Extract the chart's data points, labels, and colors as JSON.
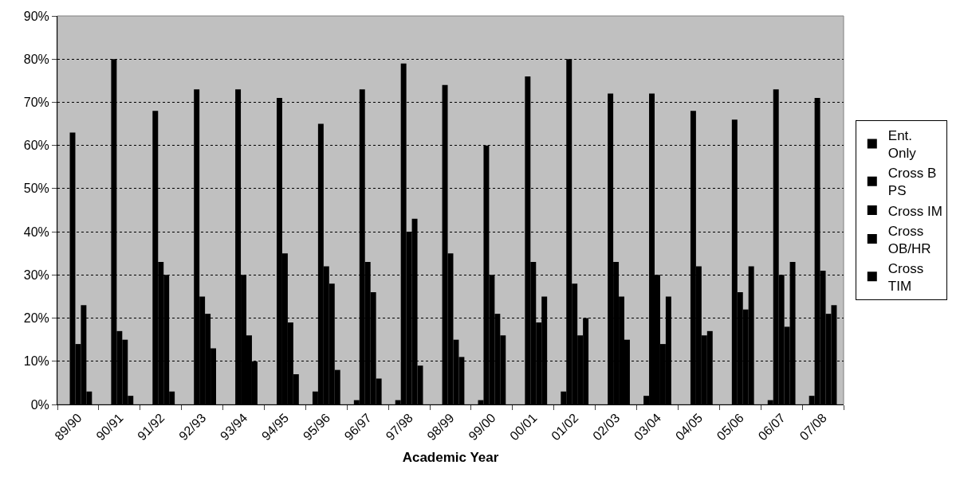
{
  "chart_data": {
    "type": "bar",
    "xlabel": "Academic Year",
    "categories": [
      "89/90",
      "90/91",
      "91/92",
      "92/93",
      "93/94",
      "94/95",
      "95/96",
      "96/97",
      "97/98",
      "98/99",
      "99/00",
      "00/01",
      "01/02",
      "02/03",
      "03/04",
      "04/05",
      "05/06",
      "06/07",
      "07/08"
    ],
    "series": [
      {
        "name": "Ent. Only",
        "color": "#000000",
        "values": [
          0,
          0,
          0,
          0,
          0,
          0,
          3,
          1,
          1,
          0,
          1,
          0,
          3,
          0,
          2,
          0,
          0,
          1,
          2
        ]
      },
      {
        "name": "Cross B PS",
        "color": "#000000",
        "values": [
          63,
          80,
          68,
          73,
          73,
          71,
          65,
          73,
          79,
          74,
          60,
          76,
          80,
          72,
          72,
          68,
          66,
          73,
          71
        ]
      },
      {
        "name": "Cross IM",
        "color": "#000000",
        "values": [
          14,
          17,
          33,
          25,
          30,
          35,
          32,
          33,
          40,
          35,
          30,
          33,
          28,
          33,
          30,
          32,
          26,
          30,
          31
        ]
      },
      {
        "name": "Cross OB/HR",
        "color": "#000000",
        "values": [
          23,
          15,
          30,
          21,
          16,
          19,
          28,
          26,
          43,
          15,
          21,
          19,
          16,
          25,
          14,
          16,
          22,
          18,
          21
        ]
      },
      {
        "name": "Cross TIM",
        "color": "#000000",
        "values": [
          3,
          2,
          3,
          13,
          10,
          7,
          8,
          6,
          9,
          11,
          16,
          25,
          20,
          15,
          25,
          17,
          32,
          33,
          23
        ]
      }
    ],
    "ylim": [
      0,
      90
    ],
    "yticks": [
      {
        "value": 0,
        "label": "0%"
      },
      {
        "value": 10,
        "label": "10%"
      },
      {
        "value": 20,
        "label": "20%"
      },
      {
        "value": 30,
        "label": "30%"
      },
      {
        "value": 40,
        "label": "40%"
      },
      {
        "value": 50,
        "label": "50%"
      },
      {
        "value": 60,
        "label": "60%"
      },
      {
        "value": 70,
        "label": "70%"
      },
      {
        "value": 80,
        "label": "80%"
      },
      {
        "value": 90,
        "label": "90%"
      }
    ],
    "grid": "y",
    "legend": "right"
  }
}
